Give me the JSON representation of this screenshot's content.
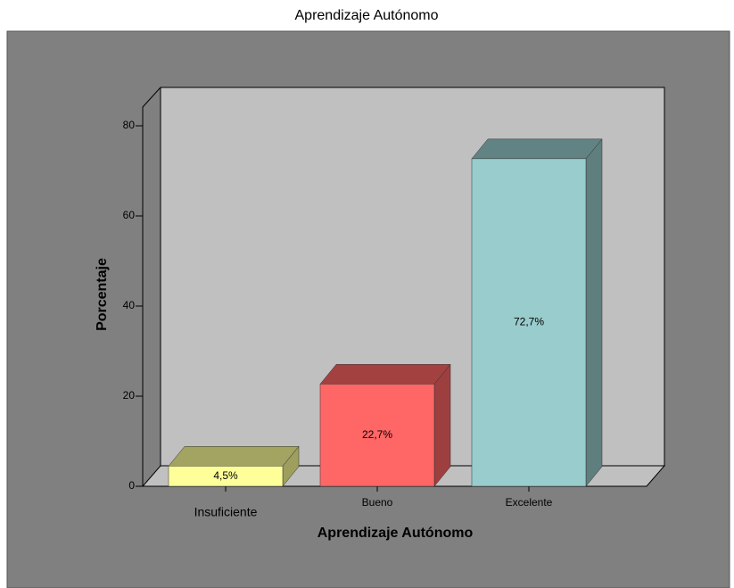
{
  "chart_data": {
    "type": "bar",
    "title": "Aprendizaje Autónomo",
    "x_label": "Aprendizaje Autónomo",
    "y_label": "Porcentaje",
    "categories": [
      "Insuficiente",
      "Bueno",
      "Excelente"
    ],
    "values": [
      4.5,
      22.7,
      72.7
    ],
    "value_labels": [
      "4,5%",
      "22,7%",
      "72,7%"
    ],
    "colors": [
      "#ffff99",
      "#ff6666",
      "#99cccc"
    ],
    "ylim": [
      0,
      80
    ],
    "yticks": [
      0,
      20,
      40,
      60,
      80
    ]
  }
}
